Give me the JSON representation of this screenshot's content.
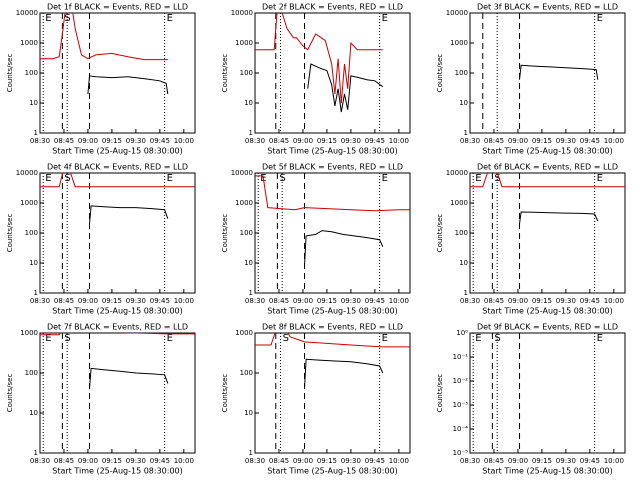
{
  "chart_data": [
    {
      "type": "line",
      "title": "Det 1f BLACK = Events, RED = LLD",
      "xlabel": "Start Time (25-Aug-15 08:30:00)",
      "ylabel": "Counts/sec",
      "log_y": true,
      "xlim": [
        0,
        97
      ],
      "ylim": [
        1,
        10000
      ],
      "xticks": [
        {
          "value": 0,
          "label": "08:30"
        },
        {
          "value": 15,
          "label": "08:45"
        },
        {
          "value": 30,
          "label": "09:00"
        },
        {
          "value": 45,
          "label": "09:15"
        },
        {
          "value": 60,
          "label": "09:30"
        },
        {
          "value": 75,
          "label": "09:45"
        },
        {
          "value": 90,
          "label": "10:00"
        }
      ],
      "yticks": [
        1,
        10,
        100,
        1000,
        10000
      ],
      "markers": [
        {
          "x": 2,
          "style": "dotted",
          "label": "E"
        },
        {
          "x": 14,
          "style": "dashed",
          "label": "S"
        },
        {
          "x": 17,
          "style": "dotted"
        },
        {
          "x": 31,
          "style": "dashed"
        },
        {
          "x": 78,
          "style": "dotted",
          "label": "E"
        }
      ],
      "series": [
        {
          "color": "#000000",
          "x": [
            30,
            31,
            35,
            45,
            55,
            65,
            75,
            79,
            80
          ],
          "values": [
            20,
            80,
            75,
            70,
            75,
            65,
            55,
            45,
            20
          ]
        },
        {
          "color": "#cc0000",
          "x": [
            0,
            8,
            12,
            14,
            16,
            18,
            20,
            22,
            26,
            30,
            31,
            35,
            45,
            55,
            65,
            75,
            80
          ],
          "values": [
            300,
            300,
            350,
            2000,
            15000,
            15000,
            15000,
            3000,
            400,
            300,
            320,
            400,
            450,
            350,
            280,
            280,
            280
          ]
        }
      ]
    },
    {
      "type": "line",
      "title": "Det 2f BLACK = Events, RED = LLD",
      "xlabel": "Start Time (25-Aug-15 08:30:00)",
      "ylabel": "Counts/sec",
      "log_y": true,
      "xlim": [
        0,
        97
      ],
      "ylim": [
        1,
        10000
      ],
      "xticks": [
        {
          "value": 0,
          "label": "08:30"
        },
        {
          "value": 15,
          "label": "08:45"
        },
        {
          "value": 30,
          "label": "09:00"
        },
        {
          "value": 45,
          "label": "09:15"
        },
        {
          "value": 60,
          "label": "09:30"
        },
        {
          "value": 75,
          "label": "09:45"
        },
        {
          "value": 90,
          "label": "10:00"
        }
      ],
      "yticks": [
        1,
        10,
        100,
        1000,
        10000
      ],
      "markers": [
        {
          "x": 13,
          "style": "dashed"
        },
        {
          "x": 16,
          "style": "dotted"
        },
        {
          "x": 31,
          "style": "dashed"
        },
        {
          "x": 78,
          "style": "dotted",
          "label": "E"
        }
      ],
      "series": [
        {
          "color": "#000000",
          "x": [
            33,
            35,
            40,
            45,
            48,
            50,
            52,
            54,
            56,
            58,
            60,
            65,
            70,
            75,
            80
          ],
          "values": [
            30,
            200,
            150,
            120,
            40,
            8,
            30,
            5,
            20,
            6,
            80,
            70,
            60,
            55,
            35
          ]
        },
        {
          "color": "#cc0000",
          "x": [
            0,
            12,
            14,
            16,
            20,
            24,
            26,
            30,
            33,
            38,
            44,
            48,
            50,
            52,
            54,
            56,
            58,
            60,
            64,
            70,
            80
          ],
          "values": [
            600,
            600,
            15000,
            15000,
            3000,
            1500,
            1500,
            800,
            600,
            2000,
            1200,
            200,
            20,
            300,
            10,
            200,
            30,
            1000,
            600,
            600,
            600
          ]
        }
      ]
    },
    {
      "type": "line",
      "title": "Det 3f BLACK = Events, RED = LLD",
      "xlabel": "Start Time (25-Aug-15 08:30:00)",
      "ylabel": "Counts/sec",
      "log_y": true,
      "xlim": [
        0,
        97
      ],
      "ylim": [
        1,
        10000
      ],
      "xticks": [
        {
          "value": 0,
          "label": "08:30"
        },
        {
          "value": 15,
          "label": "08:45"
        },
        {
          "value": 30,
          "label": "09:00"
        },
        {
          "value": 45,
          "label": "09:15"
        },
        {
          "value": 60,
          "label": "09:30"
        },
        {
          "value": 75,
          "label": "09:45"
        },
        {
          "value": 90,
          "label": "10:00"
        }
      ],
      "yticks": [
        1,
        10,
        100,
        1000,
        10000
      ],
      "markers": [
        {
          "x": 8,
          "style": "dashed"
        },
        {
          "x": 17,
          "style": "dotted"
        },
        {
          "x": 31,
          "style": "dashed"
        },
        {
          "x": 78,
          "style": "dotted",
          "label": "E"
        }
      ],
      "series": [
        {
          "color": "#000000",
          "x": [
            31,
            32,
            40,
            50,
            60,
            70,
            75,
            79,
            80
          ],
          "values": [
            60,
            180,
            170,
            160,
            150,
            140,
            135,
            130,
            60
          ]
        }
      ]
    },
    {
      "type": "line",
      "title": "Det 4f BLACK = Events, RED = LLD",
      "xlabel": "Start Time (25-Aug-15 08:30:00)",
      "ylabel": "Counts/sec",
      "log_y": true,
      "xlim": [
        0,
        97
      ],
      "ylim": [
        1,
        10000
      ],
      "xticks": [
        {
          "value": 0,
          "label": "08:30"
        },
        {
          "value": 15,
          "label": "08:45"
        },
        {
          "value": 30,
          "label": "09:00"
        },
        {
          "value": 45,
          "label": "09:15"
        },
        {
          "value": 60,
          "label": "09:30"
        },
        {
          "value": 75,
          "label": "09:45"
        },
        {
          "value": 90,
          "label": "10:00"
        }
      ],
      "yticks": [
        1,
        10,
        100,
        1000,
        10000
      ],
      "markers": [
        {
          "x": 2,
          "style": "dotted",
          "label": "E"
        },
        {
          "x": 14,
          "style": "dashed",
          "label": "S"
        },
        {
          "x": 17,
          "style": "dotted"
        },
        {
          "x": 31,
          "style": "dashed"
        },
        {
          "x": 78,
          "style": "dotted",
          "label": "E"
        }
      ],
      "series": [
        {
          "color": "#000000",
          "x": [
            31,
            32,
            40,
            50,
            60,
            70,
            78,
            80
          ],
          "values": [
            200,
            800,
            750,
            700,
            700,
            650,
            600,
            300
          ]
        },
        {
          "color": "#cc0000",
          "x": [
            0,
            12,
            15,
            18,
            22,
            26,
            30,
            97
          ],
          "values": [
            3500,
            3500,
            15000,
            15000,
            3500,
            3500,
            3500,
            3500
          ]
        }
      ]
    },
    {
      "type": "line",
      "title": "Det 5f BLACK = Events, RED = LLD",
      "xlabel": "Start Time (25-Aug-15 08:30:00)",
      "ylabel": "Counts/sec",
      "log_y": true,
      "xlim": [
        0,
        97
      ],
      "ylim": [
        1,
        10000
      ],
      "xticks": [
        {
          "value": 0,
          "label": "08:30"
        },
        {
          "value": 15,
          "label": "08:45"
        },
        {
          "value": 30,
          "label": "09:00"
        },
        {
          "value": 45,
          "label": "09:15"
        },
        {
          "value": 60,
          "label": "09:30"
        },
        {
          "value": 75,
          "label": "09:45"
        },
        {
          "value": 90,
          "label": "10:00"
        }
      ],
      "yticks": [
        1,
        10,
        100,
        1000,
        10000
      ],
      "markers": [
        {
          "x": 2,
          "style": "dotted",
          "label": "E"
        },
        {
          "x": 14,
          "style": "dashed",
          "label": "S"
        },
        {
          "x": 17,
          "style": "dotted"
        },
        {
          "x": 31,
          "style": "dashed"
        },
        {
          "x": 78,
          "style": "dotted",
          "label": "E"
        }
      ],
      "series": [
        {
          "color": "#000000",
          "x": [
            31,
            32,
            38,
            42,
            48,
            55,
            62,
            70,
            78,
            80
          ],
          "values": [
            8,
            80,
            90,
            120,
            110,
            90,
            80,
            70,
            60,
            35
          ]
        },
        {
          "color": "#cc0000",
          "x": [
            0,
            5,
            8,
            25,
            31,
            45,
            60,
            75,
            90,
            97
          ],
          "values": [
            8000,
            8000,
            700,
            600,
            700,
            650,
            600,
            550,
            600,
            600
          ]
        }
      ]
    },
    {
      "type": "line",
      "title": "Det 6f BLACK = Events, RED = LLD",
      "xlabel": "Start Time (25-Aug-15 08:30:00)",
      "ylabel": "Counts/sec",
      "log_y": true,
      "xlim": [
        0,
        97
      ],
      "ylim": [
        1,
        10000
      ],
      "xticks": [
        {
          "value": 0,
          "label": "08:30"
        },
        {
          "value": 15,
          "label": "08:45"
        },
        {
          "value": 30,
          "label": "09:00"
        },
        {
          "value": 45,
          "label": "09:15"
        },
        {
          "value": 60,
          "label": "09:30"
        },
        {
          "value": 75,
          "label": "09:45"
        },
        {
          "value": 90,
          "label": "10:00"
        }
      ],
      "yticks": [
        1,
        10,
        100,
        1000,
        10000
      ],
      "markers": [
        {
          "x": 2,
          "style": "dotted",
          "label": "E"
        },
        {
          "x": 14,
          "style": "dashed",
          "label": "S"
        },
        {
          "x": 17,
          "style": "dotted"
        },
        {
          "x": 31,
          "style": "dashed"
        },
        {
          "x": 78,
          "style": "dotted",
          "label": "E"
        }
      ],
      "series": [
        {
          "color": "#000000",
          "x": [
            31,
            32,
            40,
            50,
            60,
            70,
            78,
            80
          ],
          "values": [
            200,
            500,
            490,
            470,
            460,
            450,
            430,
            250
          ]
        },
        {
          "color": "#cc0000",
          "x": [
            0,
            8,
            12,
            16,
            20,
            97
          ],
          "values": [
            3500,
            3500,
            15000,
            15000,
            3500,
            3500
          ]
        }
      ]
    },
    {
      "type": "line",
      "title": "Det 7f BLACK = Events, RED = LLD",
      "xlabel": "Start Time (25-Aug-15 08:30:00)",
      "ylabel": "Counts/sec",
      "log_y": true,
      "xlim": [
        0,
        97
      ],
      "ylim": [
        1,
        1000
      ],
      "xticks": [
        {
          "value": 0,
          "label": "08:30"
        },
        {
          "value": 15,
          "label": "08:45"
        },
        {
          "value": 30,
          "label": "09:00"
        },
        {
          "value": 45,
          "label": "09:15"
        },
        {
          "value": 60,
          "label": "09:30"
        },
        {
          "value": 75,
          "label": "09:45"
        },
        {
          "value": 90,
          "label": "10:00"
        }
      ],
      "yticks": [
        1,
        10,
        100,
        1000
      ],
      "markers": [
        {
          "x": 2,
          "style": "dotted",
          "label": "E"
        },
        {
          "x": 14,
          "style": "dashed",
          "label": "S"
        },
        {
          "x": 17,
          "style": "dotted"
        },
        {
          "x": 31,
          "style": "dashed"
        },
        {
          "x": 78,
          "style": "dotted",
          "label": "E"
        }
      ],
      "series": [
        {
          "color": "#000000",
          "x": [
            31,
            32,
            40,
            50,
            60,
            70,
            78,
            80
          ],
          "values": [
            40,
            130,
            120,
            110,
            100,
            95,
            90,
            55
          ]
        },
        {
          "color": "#cc0000",
          "x": [
            0,
            12,
            16,
            31,
            40,
            60,
            80,
            97
          ],
          "values": [
            900,
            900,
            1500,
            1100,
            1050,
            1000,
            950,
            950
          ]
        }
      ]
    },
    {
      "type": "line",
      "title": "Det 8f BLACK = Events, RED = LLD",
      "xlabel": "Start Time (25-Aug-15 08:30:00)",
      "ylabel": "Counts/sec",
      "log_y": true,
      "xlim": [
        0,
        97
      ],
      "ylim": [
        1,
        1000
      ],
      "xticks": [
        {
          "value": 0,
          "label": "08:30"
        },
        {
          "value": 15,
          "label": "08:45"
        },
        {
          "value": 30,
          "label": "09:00"
        },
        {
          "value": 45,
          "label": "09:15"
        },
        {
          "value": 60,
          "label": "09:30"
        },
        {
          "value": 75,
          "label": "09:45"
        },
        {
          "value": 90,
          "label": "10:00"
        }
      ],
      "yticks": [
        1,
        10,
        100,
        1000
      ],
      "markers": [
        {
          "x": 13,
          "style": "dashed"
        },
        {
          "x": 16,
          "style": "dotted",
          "label": "S"
        },
        {
          "x": 31,
          "style": "dashed"
        },
        {
          "x": 78,
          "style": "dotted",
          "label": "E"
        }
      ],
      "series": [
        {
          "color": "#000000",
          "x": [
            31,
            32,
            40,
            50,
            60,
            70,
            78,
            80
          ],
          "values": [
            40,
            220,
            210,
            200,
            190,
            170,
            150,
            100
          ]
        },
        {
          "color": "#cc0000",
          "x": [
            0,
            10,
            14,
            18,
            22,
            31,
            45,
            60,
            80,
            97
          ],
          "values": [
            500,
            500,
            1500,
            1500,
            800,
            600,
            550,
            500,
            450,
            450
          ]
        }
      ]
    },
    {
      "type": "line",
      "title": "Det 9f BLACK = Events, RED = LLD",
      "xlabel": "Start Time (25-Aug-15 08:30:00)",
      "ylabel": "Counts/sec",
      "log_y": true,
      "xlim": [
        0,
        97
      ],
      "ylim": [
        1e-05,
        1
      ],
      "xticks": [
        {
          "value": 0,
          "label": "08:30"
        },
        {
          "value": 15,
          "label": "08:45"
        },
        {
          "value": 30,
          "label": "09:00"
        },
        {
          "value": 45,
          "label": "09:15"
        },
        {
          "value": 60,
          "label": "09:30"
        },
        {
          "value": 75,
          "label": "09:45"
        },
        {
          "value": 90,
          "label": "10:00"
        }
      ],
      "yticks": [
        {
          "value": 1e-05,
          "label": "10⁻⁵"
        },
        {
          "value": 0.0001,
          "label": "10⁻⁴"
        },
        {
          "value": 0.001,
          "label": "10⁻³"
        },
        {
          "value": 0.01,
          "label": "10⁻²"
        },
        {
          "value": 0.1,
          "label": "10⁻¹"
        },
        {
          "value": 1,
          "label": "10⁰"
        }
      ],
      "markers": [
        {
          "x": 2,
          "style": "dotted",
          "label": "E"
        },
        {
          "x": 14,
          "style": "dashed",
          "label": "S"
        },
        {
          "x": 17,
          "style": "dotted"
        },
        {
          "x": 31,
          "style": "dashed"
        },
        {
          "x": 78,
          "style": "dotted",
          "label": "E"
        }
      ],
      "series": []
    }
  ]
}
